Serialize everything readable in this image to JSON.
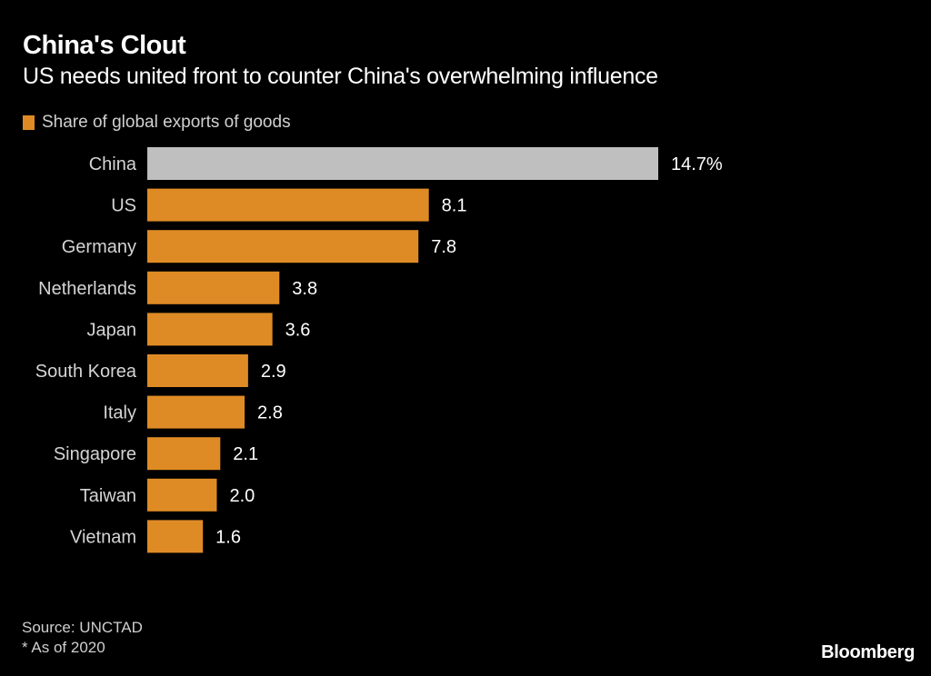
{
  "chart_data": {
    "type": "bar",
    "orientation": "horizontal",
    "title": "China's Clout",
    "subtitle": "US needs united front to counter China's overwhelming influence",
    "legend": [
      {
        "name": "Share of global exports of goods",
        "color": "#df8b25"
      }
    ],
    "legend_placement": "top-left",
    "categories": [
      "China",
      "US",
      "Germany",
      "Netherlands",
      "Japan",
      "South Korea",
      "Italy",
      "Singapore",
      "Taiwan",
      "Vietnam"
    ],
    "series": [
      {
        "name": "Share of global exports of goods",
        "values": [
          14.7,
          8.1,
          7.8,
          3.8,
          3.6,
          2.9,
          2.8,
          2.1,
          2.0,
          1.6
        ]
      }
    ],
    "value_labels": [
      "14.7%",
      "8.1",
      "7.8",
      "3.8",
      "3.6",
      "2.9",
      "2.8",
      "2.1",
      "2.0",
      "1.6"
    ],
    "highlight": {
      "category": "China",
      "color": "#bfbfbf"
    },
    "bar_color": "#df8b25",
    "xlim": [
      0,
      14.7
    ],
    "grid": false,
    "xlabel": "",
    "ylabel": ""
  },
  "footer": {
    "source": "Source: UNCTAD",
    "note": "* As of 2020",
    "brand": "Bloomberg"
  }
}
